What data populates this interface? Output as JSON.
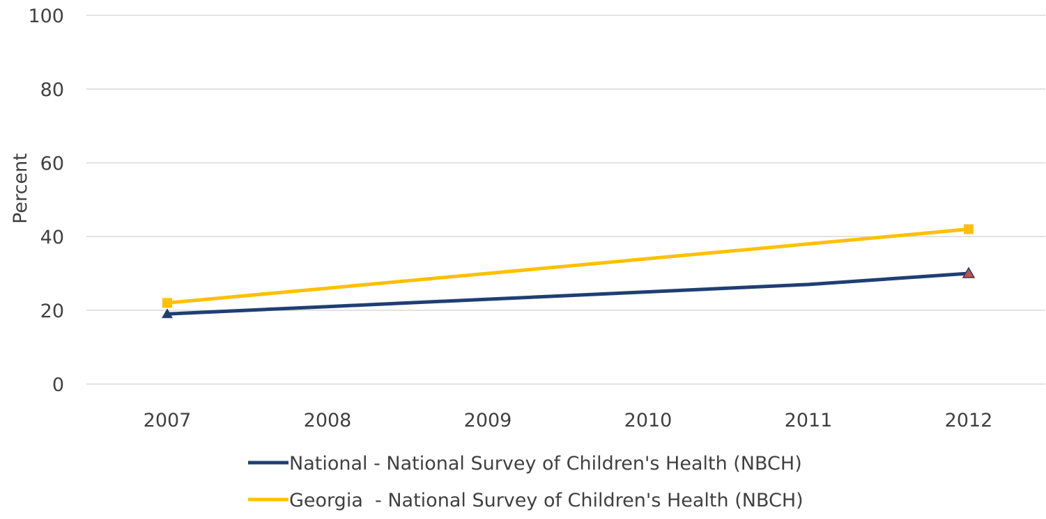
{
  "chart_data": {
    "type": "line",
    "title": "",
    "xlabel": "",
    "ylabel": "Percent",
    "ylim": [
      0,
      100
    ],
    "yticks": [
      0,
      20,
      40,
      60,
      80,
      100
    ],
    "categories": [
      "2007",
      "2008",
      "2009",
      "2010",
      "2011",
      "2012"
    ],
    "grid": true,
    "legend_position": "bottom",
    "series": [
      {
        "name": "National - National Survey of Children's Health (NBCH)",
        "color": "#1f3f73",
        "marker": "triangle",
        "points": [
          {
            "x": "2007",
            "y": 19
          },
          {
            "x": "2012",
            "y": 30
          }
        ],
        "line_values": [
          19,
          21,
          23,
          25,
          27,
          30
        ]
      },
      {
        "name": "Georgia  - National Survey of Children's Health (NBCH)",
        "color": "#ffc000",
        "marker": "square",
        "points": [
          {
            "x": "2007",
            "y": 22
          },
          {
            "x": "2012",
            "y": 42
          }
        ],
        "line_values": [
          22,
          26,
          30,
          34,
          38,
          42
        ]
      }
    ]
  }
}
